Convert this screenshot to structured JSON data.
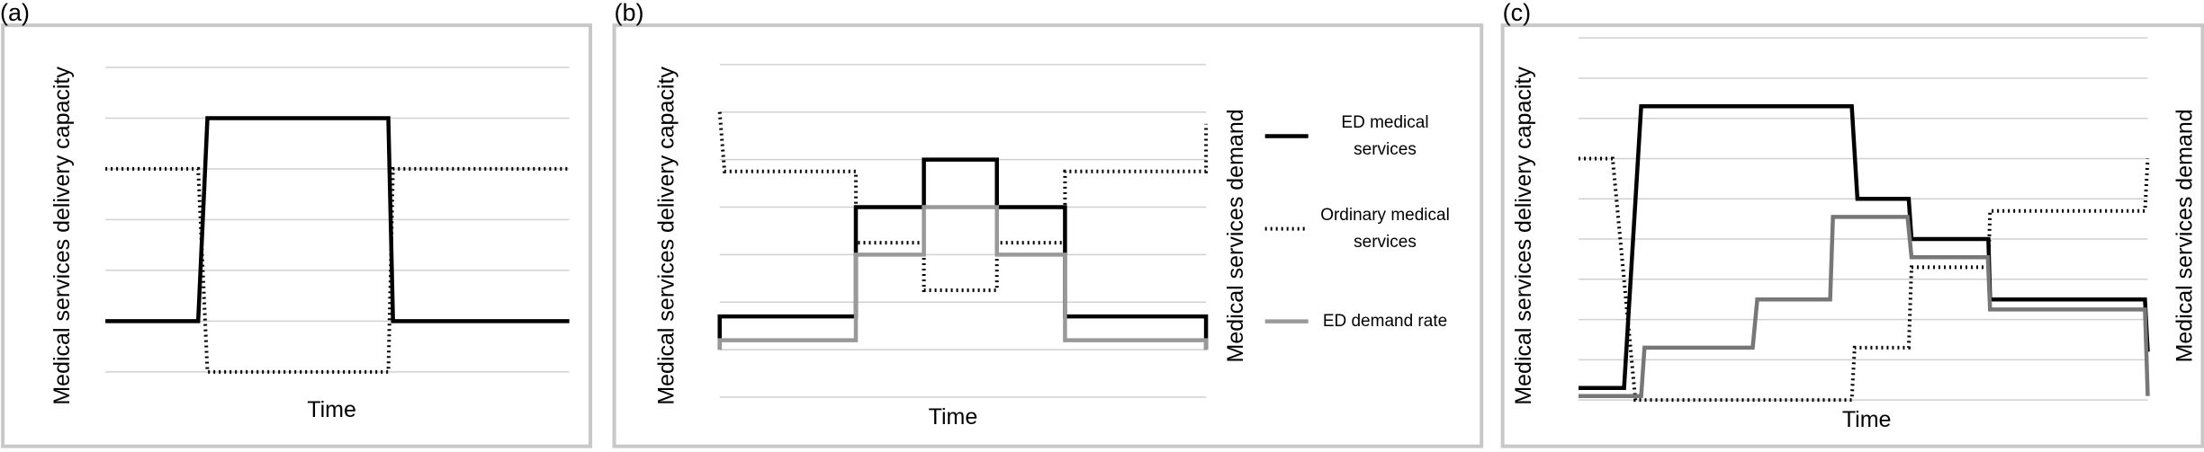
{
  "chart_data": [
    {
      "type": "line",
      "panel_label": "(a)",
      "xlabel": "Time",
      "ylabel": "Medical services delivery capacity",
      "xlim": [
        0,
        100
      ],
      "ylim": [
        0,
        6
      ],
      "grid": true,
      "grid_y": [
        0,
        1,
        2,
        3,
        4,
        5,
        6
      ],
      "series": [
        {
          "style": "solid",
          "color": "#000000",
          "x": [
            0,
            20,
            22,
            61,
            62,
            100
          ],
          "values": [
            1,
            1,
            5,
            5,
            1,
            1
          ]
        },
        {
          "style": "dotted",
          "color": "#000000",
          "x": [
            0,
            20,
            22,
            61,
            62,
            100
          ],
          "values": [
            4,
            4,
            0,
            0,
            4,
            4
          ]
        }
      ]
    },
    {
      "type": "line",
      "panel_label": "(b)",
      "xlabel": "Time",
      "ylabel": "Medical services delivery capacity",
      "y2label": "Medical services demand",
      "xlim": [
        0,
        100
      ],
      "ylim": [
        0,
        7
      ],
      "grid": true,
      "grid_y": [
        0,
        1,
        2,
        3,
        4,
        5,
        6,
        7
      ],
      "legend": "right",
      "series": [
        {
          "name": "ED medical services",
          "style": "solid",
          "color": "#000000",
          "x": [
            0,
            0,
            28,
            28,
            42,
            42,
            57,
            57,
            71,
            71,
            100,
            100
          ],
          "values": [
            1,
            1.7,
            1.7,
            4,
            4,
            5,
            5,
            4,
            4,
            1.7,
            1.7,
            1
          ]
        },
        {
          "name": "Ordinary medical services",
          "style": "dotted",
          "color": "#000000",
          "x": [
            0,
            1,
            28,
            28,
            42,
            42,
            57,
            57,
            71,
            71,
            100,
            100
          ],
          "values": [
            6,
            4.75,
            4.75,
            3.25,
            3.25,
            2.25,
            2.25,
            3.25,
            3.25,
            4.75,
            4.75,
            5.75
          ]
        },
        {
          "name": "ED demand rate",
          "style": "solid",
          "color": "#999999",
          "x": [
            0,
            0,
            28,
            28,
            42,
            42,
            57,
            57,
            71,
            71,
            100,
            100
          ],
          "values": [
            1,
            1.2,
            1.2,
            3,
            3,
            4,
            4,
            3,
            3,
            1.2,
            1.2,
            1
          ]
        }
      ]
    },
    {
      "type": "line",
      "panel_label": "(c)",
      "xlabel": "Time",
      "ylabel": "Medical services delivery capacity",
      "y2label": "Medical services demand",
      "xlim": [
        0,
        100
      ],
      "ylim": [
        0,
        9
      ],
      "grid": true,
      "grid_y": [
        0,
        1,
        2,
        3,
        4,
        5,
        6,
        7,
        8,
        9
      ],
      "series": [
        {
          "style": "solid",
          "color": "#000000",
          "x": [
            0,
            8,
            11,
            48,
            49,
            58,
            58.5,
            72,
            72.3,
            99.5,
            100
          ],
          "values": [
            0.3,
            0.3,
            7.3,
            7.3,
            5,
            5,
            4,
            4,
            2.5,
            2.5,
            1.2
          ]
        },
        {
          "style": "dotted",
          "color": "#000000",
          "x": [
            0,
            6,
            10,
            48,
            48.5,
            58,
            58.5,
            72,
            72.3,
            99.5,
            100
          ],
          "values": [
            6,
            6,
            0,
            0,
            1.3,
            1.3,
            3.3,
            3.3,
            4.7,
            4.7,
            6
          ]
        },
        {
          "style": "solid",
          "color": "#777777",
          "x": [
            0,
            11,
            11.6,
            30.6,
            31.4,
            44.2,
            44.7,
            57.8,
            58.5,
            71.9,
            72.3,
            99.5,
            100
          ],
          "values": [
            0.1,
            0.1,
            1.3,
            1.3,
            2.5,
            2.5,
            4.55,
            4.55,
            3.55,
            3.55,
            2.25,
            2.25,
            0.1
          ]
        }
      ]
    }
  ]
}
